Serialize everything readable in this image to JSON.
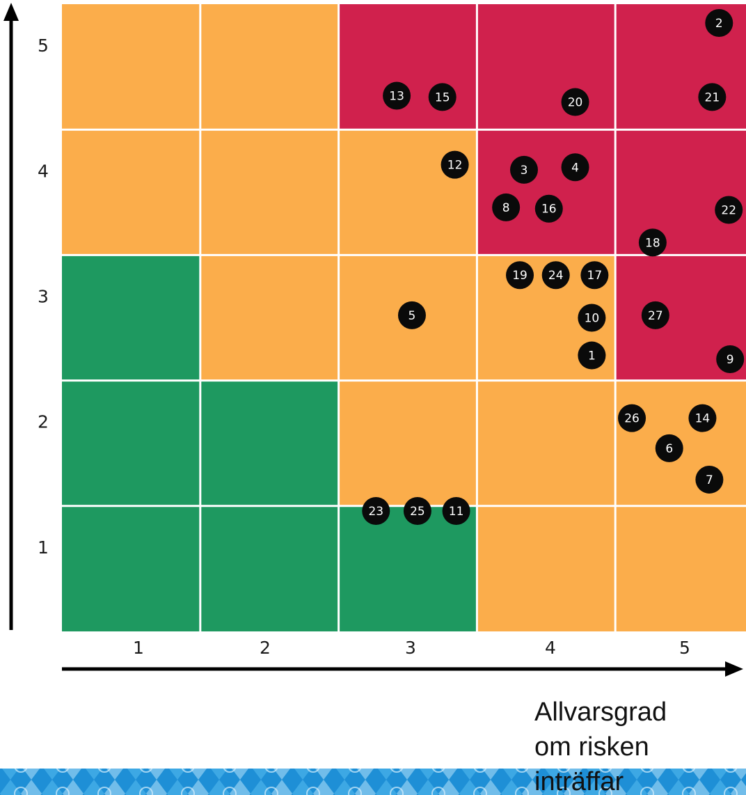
{
  "chart_data": {
    "type": "heatmap",
    "xlabel": [
      "Allvarsgrad",
      "om risken",
      "inträffar"
    ],
    "ylabel": "",
    "x_ticks": [
      "1",
      "2",
      "3",
      "4",
      "5"
    ],
    "y_ticks": [
      "1",
      "2",
      "3",
      "4",
      "5"
    ],
    "xlim": [
      0.5,
      5.5
    ],
    "ylim": [
      0.5,
      5.5
    ],
    "grid": true,
    "colors": {
      "green": "#1e9960",
      "orange": "#fbad4b",
      "red": "#d0214d",
      "marker": "#0a0a0a",
      "marker_text": "#ffffff",
      "gridline": "#ffffff"
    },
    "cells": [
      [
        "green",
        "green",
        "green",
        "orange",
        "orange"
      ],
      [
        "green",
        "green",
        "orange",
        "orange",
        "orange"
      ],
      [
        "green",
        "orange",
        "orange",
        "orange",
        "red"
      ],
      [
        "orange",
        "orange",
        "orange",
        "red",
        "red"
      ],
      [
        "orange",
        "orange",
        "red",
        "red",
        "red"
      ]
    ],
    "markers": [
      {
        "label": "1",
        "x": 4.33,
        "y": 2.7
      },
      {
        "label": "2",
        "x": 5.25,
        "y": 5.35
      },
      {
        "label": "3",
        "x": 3.84,
        "y": 4.18
      },
      {
        "label": "4",
        "x": 4.21,
        "y": 4.2
      },
      {
        "label": "5",
        "x": 3.03,
        "y": 3.02
      },
      {
        "label": "6",
        "x": 4.89,
        "y": 1.96
      },
      {
        "label": "7",
        "x": 5.18,
        "y": 1.71
      },
      {
        "label": "8",
        "x": 3.71,
        "y": 3.88
      },
      {
        "label": "9",
        "x": 5.33,
        "y": 2.67
      },
      {
        "label": "10",
        "x": 4.33,
        "y": 3.0
      },
      {
        "label": "11",
        "x": 3.35,
        "y": 1.46
      },
      {
        "label": "12",
        "x": 3.34,
        "y": 4.22
      },
      {
        "label": "13",
        "x": 2.92,
        "y": 4.77
      },
      {
        "label": "14",
        "x": 5.13,
        "y": 2.2
      },
      {
        "label": "15",
        "x": 3.25,
        "y": 4.76
      },
      {
        "label": "16",
        "x": 4.02,
        "y": 3.87
      },
      {
        "label": "17",
        "x": 4.35,
        "y": 3.34
      },
      {
        "label": "18",
        "x": 4.77,
        "y": 3.6
      },
      {
        "label": "19",
        "x": 3.81,
        "y": 3.34
      },
      {
        "label": "20",
        "x": 4.21,
        "y": 4.72
      },
      {
        "label": "21",
        "x": 5.2,
        "y": 4.76
      },
      {
        "label": "22",
        "x": 5.32,
        "y": 3.86
      },
      {
        "label": "23",
        "x": 2.77,
        "y": 1.46
      },
      {
        "label": "24",
        "x": 4.07,
        "y": 3.34
      },
      {
        "label": "25",
        "x": 3.07,
        "y": 1.46
      },
      {
        "label": "26",
        "x": 4.62,
        "y": 2.2
      },
      {
        "label": "27",
        "x": 4.79,
        "y": 3.02
      }
    ]
  }
}
